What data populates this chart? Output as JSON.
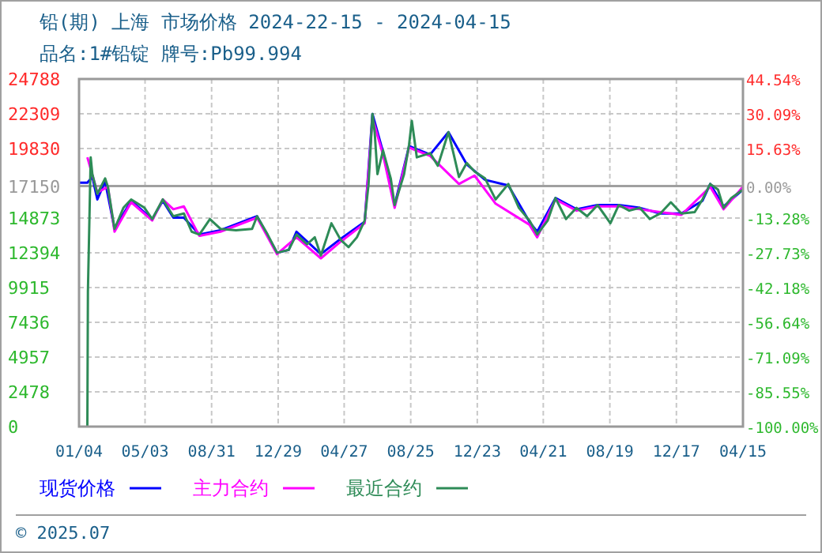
{
  "chart_data": {
    "type": "line",
    "title": "铅(期) 上海 市场价格 2024-22-15 - 2024-04-15",
    "subtitle": "品名:1#铅锭 牌号:Pb99.994",
    "xlim": [
      "2021-01-04",
      "2024-04-15"
    ],
    "xticks": [
      {
        "value": "2021-01-04",
        "label": "01/04"
      },
      {
        "value": "2021-05-03",
        "label": "05/03"
      },
      {
        "value": "2021-08-31",
        "label": "08/31"
      },
      {
        "value": "2021-12-29",
        "label": "12/29"
      },
      {
        "value": "2022-04-27",
        "label": "04/27"
      },
      {
        "value": "2022-08-25",
        "label": "08/25"
      },
      {
        "value": "2022-12-23",
        "label": "12/23"
      },
      {
        "value": "2023-04-21",
        "label": "04/21"
      },
      {
        "value": "2023-08-19",
        "label": "08/19"
      },
      {
        "value": "2023-12-17",
        "label": "12/17"
      },
      {
        "value": "2024-04-15",
        "label": "04/15"
      }
    ],
    "ylim": [
      0,
      24788
    ],
    "yticks": [
      0,
      2478,
      4957,
      7436,
      9915,
      12394,
      14873,
      17150,
      19830,
      22309,
      24788
    ],
    "y2lim": [
      -100,
      44.54
    ],
    "y2ticks": [
      {
        "value": -100,
        "label": "-100.00%"
      },
      {
        "value": -85.55,
        "label": "-85.55%"
      },
      {
        "value": -71.09,
        "label": "-71.09%"
      },
      {
        "value": -56.64,
        "label": "-56.64%"
      },
      {
        "value": -42.18,
        "label": "-42.18%"
      },
      {
        "value": -27.73,
        "label": "-27.73%"
      },
      {
        "value": -13.28,
        "label": "-13.28%"
      },
      {
        "value": 0,
        "label": "0.00%"
      },
      {
        "value": 15.63,
        "label": "15.63%"
      },
      {
        "value": 30.09,
        "label": "30.09%"
      },
      {
        "value": 44.54,
        "label": "44.54%"
      }
    ],
    "ref_lines": [
      {
        "axis": "y",
        "value": 17150,
        "color": "#a0a0a0"
      }
    ],
    "grid": true,
    "legend": "bottom",
    "marker": "none",
    "line_style": "solid",
    "series": [
      {
        "name": "现货价格",
        "color": "#0000ff",
        "x": [
          "2021-01-04",
          "2021-01-19",
          "2021-01-28",
          "2021-02-06",
          "2021-02-20",
          "2021-03-09",
          "2021-04-08",
          "2021-05-16",
          "2021-06-04",
          "2021-06-23",
          "2021-07-12",
          "2021-08-09",
          "2021-09-16",
          "2021-11-21",
          "2021-12-27",
          "2022-01-17",
          "2022-01-31",
          "2022-03-16",
          "2022-04-21",
          "2022-06-03",
          "2022-06-17",
          "2022-07-06",
          "2022-07-27",
          "2022-08-22",
          "2022-09-29",
          "2022-11-01",
          "2022-12-04",
          "2023-01-06",
          "2023-02-17",
          "2023-03-27",
          "2023-04-10",
          "2023-05-13",
          "2023-06-20",
          "2023-07-28",
          "2023-09-04",
          "2023-10-12",
          "2023-11-18",
          "2023-12-26",
          "2024-02-02",
          "2024-02-16",
          "2024-03-11",
          "2024-04-15"
        ],
        "values": [
          17400,
          17400,
          17800,
          16200,
          17500,
          14100,
          16100,
          14800,
          16100,
          14900,
          14900,
          13700,
          14000,
          15000,
          12400,
          12600,
          13900,
          12300,
          13400,
          14600,
          22300,
          19600,
          15800,
          20000,
          19400,
          21000,
          18700,
          17600,
          17200,
          14600,
          13900,
          16300,
          15500,
          15800,
          15800,
          15600,
          15200,
          15200,
          16100,
          17300,
          15700,
          16900
        ]
      },
      {
        "name": "主力合约",
        "color": "#ff00ff",
        "x": [
          "2021-01-19",
          "2021-02-06",
          "2021-02-25",
          "2021-03-09",
          "2021-04-08",
          "2021-05-16",
          "2021-06-04",
          "2021-06-23",
          "2021-07-12",
          "2021-08-09",
          "2021-09-16",
          "2021-11-21",
          "2021-12-27",
          "2022-01-31",
          "2022-03-16",
          "2022-04-21",
          "2022-06-03",
          "2022-06-17",
          "2022-07-06",
          "2022-07-27",
          "2022-08-22",
          "2022-09-29",
          "2022-11-20",
          "2022-12-18",
          "2023-01-25",
          "2023-03-27",
          "2023-04-10",
          "2023-05-13",
          "2023-06-20",
          "2023-07-28",
          "2023-09-04",
          "2023-10-12",
          "2023-11-18",
          "2023-12-26",
          "2024-02-16",
          "2024-03-11",
          "2024-04-15"
        ],
        "values": [
          19200,
          16700,
          17100,
          13900,
          16000,
          14700,
          16200,
          15500,
          15700,
          13600,
          13900,
          14900,
          12300,
          13500,
          12000,
          13200,
          14500,
          22000,
          19400,
          15600,
          19900,
          19300,
          17300,
          17900,
          15900,
          14400,
          13500,
          16200,
          15400,
          15700,
          15700,
          15500,
          15300,
          15100,
          17100,
          15500,
          17100
        ]
      },
      {
        "name": "最近合约",
        "color": "#2e8b57",
        "x": [
          "2021-01-19",
          "2021-01-20",
          "2021-01-25",
          "2021-01-28",
          "2021-02-06",
          "2021-02-20",
          "2021-02-25",
          "2021-03-09",
          "2021-03-25",
          "2021-04-08",
          "2021-05-02",
          "2021-05-16",
          "2021-06-04",
          "2021-06-23",
          "2021-07-12",
          "2021-07-26",
          "2021-08-09",
          "2021-08-28",
          "2021-09-16",
          "2021-10-14",
          "2021-11-12",
          "2021-11-21",
          "2021-12-10",
          "2021-12-27",
          "2022-01-17",
          "2022-01-31",
          "2022-02-19",
          "2022-03-05",
          "2022-03-16",
          "2022-04-04",
          "2022-04-21",
          "2022-05-05",
          "2022-05-20",
          "2022-06-03",
          "2022-06-10",
          "2022-06-17",
          "2022-06-21",
          "2022-06-26",
          "2022-07-06",
          "2022-07-20",
          "2022-07-27",
          "2022-08-13",
          "2022-08-22",
          "2022-08-27",
          "2022-09-05",
          "2022-09-29",
          "2022-10-13",
          "2022-11-01",
          "2022-11-10",
          "2022-11-20",
          "2022-12-04",
          "2022-12-18",
          "2023-01-06",
          "2023-01-25",
          "2023-02-17",
          "2023-03-08",
          "2023-03-27",
          "2023-04-10",
          "2023-04-29",
          "2023-05-13",
          "2023-06-01",
          "2023-06-20",
          "2023-07-09",
          "2023-07-28",
          "2023-08-20",
          "2023-09-04",
          "2023-09-23",
          "2023-10-12",
          "2023-10-30",
          "2023-11-18",
          "2023-12-07",
          "2023-12-26",
          "2024-01-19",
          "2024-02-02",
          "2024-02-16",
          "2024-03-01",
          "2024-03-11",
          "2024-03-25",
          "2024-04-15"
        ],
        "values": [
          0,
          9600,
          19200,
          18000,
          16600,
          17700,
          17100,
          14100,
          15600,
          16200,
          15600,
          14800,
          16200,
          15000,
          15200,
          13900,
          13700,
          14800,
          14100,
          14000,
          14100,
          15000,
          13700,
          12400,
          12600,
          13700,
          13000,
          13500,
          12200,
          14500,
          13300,
          12800,
          13500,
          14700,
          17300,
          22300,
          21000,
          18000,
          19700,
          17700,
          15800,
          18000,
          20100,
          21800,
          19200,
          19500,
          18600,
          21000,
          19500,
          17800,
          18800,
          18200,
          17700,
          16200,
          17300,
          15600,
          14700,
          13700,
          14700,
          16300,
          14800,
          15600,
          15000,
          15800,
          14500,
          15800,
          15400,
          15600,
          14800,
          15200,
          16000,
          15200,
          15300,
          16200,
          17300,
          16900,
          15600,
          16300,
          16900
        ]
      }
    ],
    "annotations": [
      "© 2025.07"
    ]
  }
}
